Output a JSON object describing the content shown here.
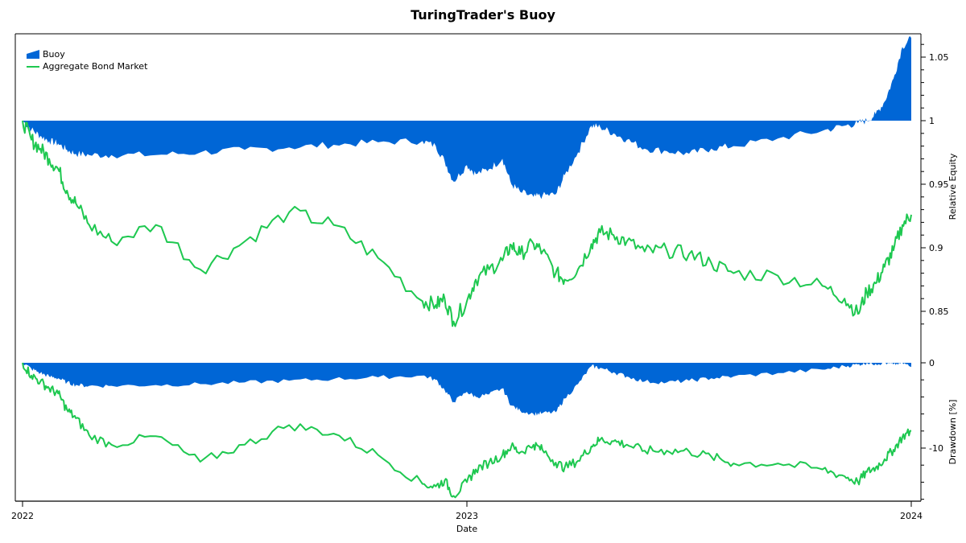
{
  "title": "TuringTrader's Buoy",
  "colors": {
    "buoy": "#0066d6",
    "bond": "#1ec850",
    "axis": "#000000",
    "background": "#ffffff"
  },
  "legend": [
    {
      "label": "Buoy",
      "kind": "area",
      "color": "#0066d6"
    },
    {
      "label": "Aggregate Bond Market",
      "kind": "line",
      "color": "#1ec850"
    }
  ],
  "x_axis": {
    "label": "Date",
    "ticks": [
      "2022",
      "2023",
      "2024"
    ]
  },
  "equity_axis": {
    "label": "Relative Equity",
    "ticks": [
      "1.05",
      "1",
      "0.95",
      "0.9",
      "0.85"
    ]
  },
  "drawdown_axis": {
    "label": "Drawdown [%]",
    "ticks": [
      "0",
      "-10"
    ]
  },
  "chart_data": [
    {
      "type": "area",
      "title": "TuringTrader's Buoy — Relative Equity",
      "xlabel": "Date",
      "ylabel": "Relative Equity",
      "ylim": [
        0.83,
        1.068
      ],
      "x_range": [
        "2022-01",
        "2024-01"
      ],
      "grid": false,
      "legend_position": "top-left",
      "x": [
        2022.0,
        2022.02,
        2022.04,
        2022.06,
        2022.08,
        2022.1,
        2022.12,
        2022.15,
        2022.2,
        2022.3,
        2022.4,
        2022.5,
        2022.6,
        2022.7,
        2022.8,
        2022.9,
        2022.93,
        2022.95,
        2022.97,
        2023.0,
        2023.02,
        2023.05,
        2023.08,
        2023.1,
        2023.12,
        2023.15,
        2023.17,
        2023.2,
        2023.22,
        2023.25,
        2023.28,
        2023.3,
        2023.33,
        2023.36,
        2023.4,
        2023.45,
        2023.5,
        2023.55,
        2023.6,
        2023.7,
        2023.8,
        2023.85,
        2023.88,
        2023.9,
        2023.92,
        2023.94,
        2023.96,
        2023.98,
        2024.0
      ],
      "series": [
        {
          "name": "Buoy",
          "values": [
            1.0,
            0.993,
            0.988,
            0.984,
            0.982,
            0.977,
            0.974,
            0.973,
            0.973,
            0.973,
            0.975,
            0.977,
            0.979,
            0.981,
            0.983,
            0.984,
            0.98,
            0.968,
            0.952,
            0.965,
            0.958,
            0.962,
            0.97,
            0.95,
            0.944,
            0.94,
            0.941,
            0.942,
            0.957,
            0.975,
            0.996,
            0.995,
            0.99,
            0.985,
            0.978,
            0.976,
            0.974,
            0.978,
            0.98,
            0.986,
            0.992,
            0.996,
            0.998,
            1.0,
            1.005,
            1.015,
            1.033,
            1.058,
            1.065
          ]
        },
        {
          "name": "Aggregate Bond Market",
          "values": [
            1.0,
            0.985,
            0.978,
            0.97,
            0.962,
            0.945,
            0.935,
            0.918,
            0.905,
            0.918,
            0.883,
            0.905,
            0.928,
            0.918,
            0.892,
            0.858,
            0.855,
            0.86,
            0.842,
            0.858,
            0.875,
            0.883,
            0.89,
            0.902,
            0.895,
            0.903,
            0.897,
            0.88,
            0.875,
            0.883,
            0.903,
            0.912,
            0.91,
            0.905,
            0.897,
            0.898,
            0.895,
            0.888,
            0.88,
            0.878,
            0.87,
            0.86,
            0.848,
            0.865,
            0.872,
            0.885,
            0.898,
            0.918,
            0.926
          ]
        }
      ]
    },
    {
      "type": "area",
      "title": "Drawdown",
      "xlabel": "Date",
      "ylabel": "Drawdown [%]",
      "ylim": [
        -14.5,
        1
      ],
      "series": [
        {
          "name": "Buoy",
          "values": [
            0,
            -0.7,
            -1.2,
            -1.6,
            -1.8,
            -2.3,
            -2.6,
            -2.7,
            -2.7,
            -2.6,
            -2.5,
            -2.3,
            -2.1,
            -1.9,
            -1.7,
            -1.5,
            -2.0,
            -3.2,
            -4.6,
            -3.4,
            -4.0,
            -3.7,
            -3.0,
            -5.0,
            -5.6,
            -6.0,
            -5.9,
            -5.8,
            -4.2,
            -2.5,
            -0.4,
            -0.6,
            -1.1,
            -1.6,
            -2.2,
            -2.3,
            -2.1,
            -1.8,
            -1.6,
            -1.2,
            -0.8,
            -0.4,
            -0.2,
            0,
            -0.1,
            0,
            -0.2,
            0,
            -0.5
          ]
        },
        {
          "name": "Aggregate Bond Market",
          "values": [
            0,
            -1.5,
            -2.2,
            -3.0,
            -3.6,
            -5.5,
            -6.5,
            -8.5,
            -9.6,
            -8.6,
            -11.6,
            -9.6,
            -7.3,
            -8.3,
            -10.8,
            -14.2,
            -14.5,
            -13.8,
            -15.6,
            -14.0,
            -12.5,
            -11.7,
            -10.8,
            -9.8,
            -10.5,
            -9.6,
            -10.2,
            -11.7,
            -12.3,
            -11.5,
            -9.8,
            -9.0,
            -9.2,
            -9.6,
            -10.3,
            -10.3,
            -10.4,
            -11.0,
            -11.8,
            -11.8,
            -12.5,
            -13.3,
            -14.0,
            -12.8,
            -12.3,
            -11.3,
            -10.2,
            -8.7,
            -8.0
          ]
        }
      ]
    }
  ]
}
